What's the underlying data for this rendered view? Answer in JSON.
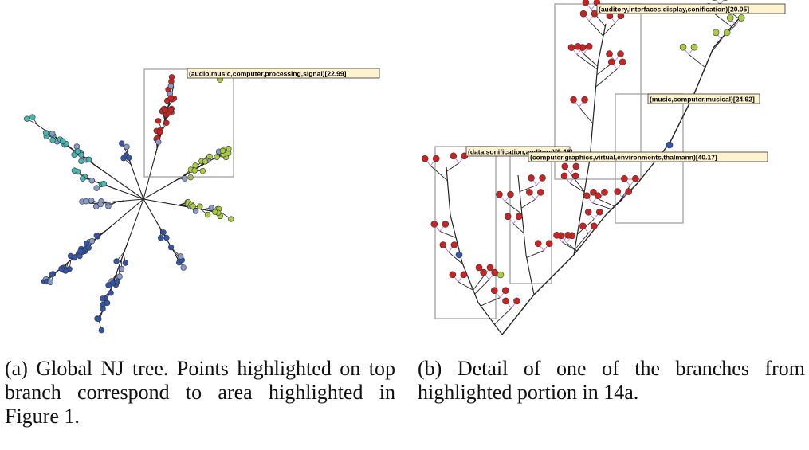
{
  "panel_a": {
    "cluster_label": "(audio,music,computer,processing,signal)[22.99]",
    "caption": "(a) Global NJ tree.  Points highlighted on top branch correspond to area highlighted in Figure 1."
  },
  "panel_b": {
    "labels": [
      "(auditory,interfaces,display,sonification)[20.05]",
      "(music,computer,musical)[24.92]",
      "(data,sonification,auditory)[9.46]",
      "(computer,graphics,virtual,environments,thalmann)[40.17]"
    ],
    "caption": "(b) Detail of one of the branches from highlighted portion in 14a."
  },
  "colors": {
    "red": "#cc2222",
    "blue": "#3355aa",
    "teal": "#44b6b0",
    "lime": "#a9cc44",
    "light_blue": "#8899cc",
    "edge": "#222222",
    "label_fill": "#fff3cf",
    "box_stroke": "#9a9a9a"
  }
}
